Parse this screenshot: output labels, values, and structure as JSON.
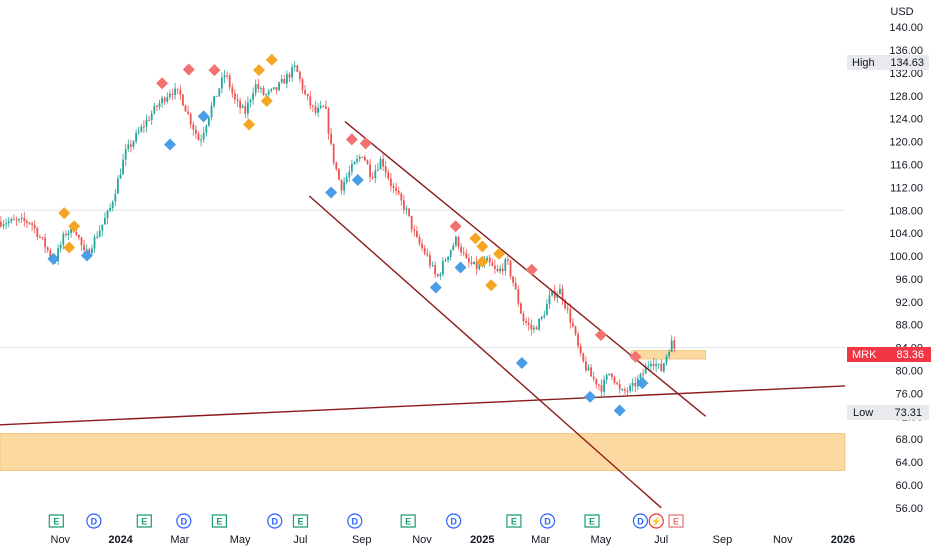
{
  "chart_data": {
    "type": "candlestick",
    "ticker": "MRK",
    "currency": "USD",
    "last_price": "83.36",
    "high_label": "High",
    "high_value": "134.63",
    "low_label": "Low",
    "low_value": "73.31",
    "y_ticks": [
      "140.00",
      "136.00",
      "132.00",
      "128.00",
      "124.00",
      "120.00",
      "116.00",
      "112.00",
      "108.00",
      "104.00",
      "100.00",
      "96.00",
      "92.00",
      "88.00",
      "84.00",
      "80.00",
      "76.00",
      "72.00",
      "68.00",
      "64.00",
      "60.00",
      "56.00"
    ],
    "x_ticks": [
      "Nov",
      "2024",
      "Mar",
      "May",
      "Jul",
      "Sep",
      "Nov",
      "2025",
      "Mar",
      "May",
      "Jul",
      "Sep",
      "Nov",
      "2026"
    ],
    "ylim": [
      53,
      143
    ],
    "price_path": [
      [
        "2023-10-01",
        106
      ],
      [
        "2023-10-15",
        102
      ],
      [
        "2023-10-25",
        99
      ],
      [
        "2023-11-05",
        104
      ],
      [
        "2023-11-15",
        105
      ],
      [
        "2023-11-25",
        100
      ],
      [
        "2023-12-05",
        103
      ],
      [
        "2023-12-20",
        108
      ],
      [
        "2024-01-05",
        118
      ],
      [
        "2024-01-20",
        122
      ],
      [
        "2024-02-05",
        126
      ],
      [
        "2024-02-20",
        129
      ],
      [
        "2024-03-01",
        128
      ],
      [
        "2024-03-10",
        124
      ],
      [
        "2024-03-20",
        120
      ],
      [
        "2024-04-01",
        126
      ],
      [
        "2024-04-15",
        132
      ],
      [
        "2024-04-25",
        127
      ],
      [
        "2024-05-05",
        125
      ],
      [
        "2024-05-15",
        130
      ],
      [
        "2024-05-25",
        128
      ],
      [
        "2024-06-05",
        129
      ],
      [
        "2024-06-15",
        131
      ],
      [
        "2024-06-25",
        133
      ],
      [
        "2024-07-05",
        128
      ],
      [
        "2024-07-15",
        125
      ],
      [
        "2024-07-25",
        126
      ],
      [
        "2024-08-01",
        118
      ],
      [
        "2024-08-10",
        112
      ],
      [
        "2024-08-20",
        115
      ],
      [
        "2024-09-01",
        118
      ],
      [
        "2024-09-10",
        114
      ],
      [
        "2024-09-20",
        117
      ],
      [
        "2024-10-01",
        112
      ],
      [
        "2024-10-15",
        108
      ],
      [
        "2024-10-25",
        103
      ],
      [
        "2024-11-05",
        100
      ],
      [
        "2024-11-15",
        96
      ],
      [
        "2024-11-25",
        100
      ],
      [
        "2024-12-05",
        103
      ],
      [
        "2024-12-15",
        99
      ],
      [
        "2024-12-25",
        98
      ],
      [
        "2025-01-05",
        99
      ],
      [
        "2025-01-15",
        97
      ],
      [
        "2025-01-25",
        99
      ],
      [
        "2025-02-01",
        95
      ],
      [
        "2025-02-10",
        89
      ],
      [
        "2025-02-20",
        87
      ],
      [
        "2025-03-01",
        89
      ],
      [
        "2025-03-10",
        93
      ],
      [
        "2025-03-20",
        94
      ],
      [
        "2025-04-01",
        88
      ],
      [
        "2025-04-10",
        82
      ],
      [
        "2025-04-20",
        79
      ],
      [
        "2025-05-01",
        77
      ],
      [
        "2025-05-10",
        80
      ],
      [
        "2025-05-20",
        76
      ],
      [
        "2025-06-01",
        77
      ],
      [
        "2025-06-10",
        79
      ],
      [
        "2025-06-20",
        82
      ],
      [
        "2025-06-30",
        80
      ],
      [
        "2025-07-10",
        85
      ],
      [
        "2025-07-15",
        83.36
      ]
    ],
    "horizontal_lines": [
      108,
      84
    ],
    "zones": [
      {
        "from": 62.5,
        "to": 69,
        "x_start": "2023-09-01",
        "x_end": "2026-04-01",
        "color": "#fdd9a2"
      },
      {
        "from": 82,
        "to": 83.5,
        "x_start": "2025-06-01",
        "x_end": "2025-08-15",
        "color": "#fdd9a2"
      }
    ],
    "trend_lines": [
      {
        "points": [
          [
            "2024-07-10",
            110.5
          ],
          [
            "2025-07-01",
            56
          ]
        ],
        "color": "#8b1a1a"
      },
      {
        "points": [
          [
            "2024-08-15",
            123.5
          ],
          [
            "2025-08-15",
            72
          ]
        ],
        "color": "#8b1a1a"
      },
      {
        "points": [
          [
            "2023-09-01",
            70.5
          ],
          [
            "2026-04-01",
            78
          ]
        ],
        "color": "#8b1a1a"
      }
    ],
    "pivot_markers": [
      {
        "x": "2023-10-25",
        "y": 99.5,
        "color": "#4a9ee6"
      },
      {
        "x": "2023-11-05",
        "y": 107.5,
        "color": "#f5a623"
      },
      {
        "x": "2023-11-10",
        "y": 101.5,
        "color": "#f5a623"
      },
      {
        "x": "2023-11-15",
        "y": 105.2,
        "color": "#f5a623"
      },
      {
        "x": "2023-11-28",
        "y": 100.1,
        "color": "#4a9ee6"
      },
      {
        "x": "2024-02-12",
        "y": 130.2,
        "color": "#f27171"
      },
      {
        "x": "2024-02-20",
        "y": 119.5,
        "color": "#4a9ee6"
      },
      {
        "x": "2024-03-10",
        "y": 132.6,
        "color": "#f27171"
      },
      {
        "x": "2024-03-25",
        "y": 124.4,
        "color": "#4a9ee6"
      },
      {
        "x": "2024-04-05",
        "y": 132.5,
        "color": "#f27171"
      },
      {
        "x": "2024-05-10",
        "y": 123,
        "color": "#f5a623"
      },
      {
        "x": "2024-05-20",
        "y": 132.5,
        "color": "#f5a623"
      },
      {
        "x": "2024-05-28",
        "y": 127.1,
        "color": "#f5a623"
      },
      {
        "x": "2024-06-02",
        "y": 134.3,
        "color": "#f5a623"
      },
      {
        "x": "2024-08-01",
        "y": 111.1,
        "color": "#4a9ee6"
      },
      {
        "x": "2024-08-22",
        "y": 120.4,
        "color": "#f27171"
      },
      {
        "x": "2024-08-28",
        "y": 113.3,
        "color": "#4a9ee6"
      },
      {
        "x": "2024-09-05",
        "y": 119.7,
        "color": "#f27171"
      },
      {
        "x": "2024-11-15",
        "y": 94.5,
        "color": "#4a9ee6"
      },
      {
        "x": "2024-12-05",
        "y": 105.2,
        "color": "#f27171"
      },
      {
        "x": "2024-12-10",
        "y": 98,
        "color": "#4a9ee6"
      },
      {
        "x": "2024-12-25",
        "y": 103.1,
        "color": "#f5a623"
      },
      {
        "x": "2025-01-01",
        "y": 101.7,
        "color": "#f5a623"
      },
      {
        "x": "2025-01-01",
        "y": 99,
        "color": "#f5a623"
      },
      {
        "x": "2025-01-10",
        "y": 94.9,
        "color": "#f5a623"
      },
      {
        "x": "2025-01-18",
        "y": 100.4,
        "color": "#f5a623"
      },
      {
        "x": "2025-02-20",
        "y": 97.6,
        "color": "#f27171"
      },
      {
        "x": "2025-02-10",
        "y": 81.3,
        "color": "#4a9ee6"
      },
      {
        "x": "2025-04-20",
        "y": 75.4,
        "color": "#4a9ee6"
      },
      {
        "x": "2025-05-01",
        "y": 86.2,
        "color": "#f27171"
      },
      {
        "x": "2025-05-20",
        "y": 73,
        "color": "#4a9ee6"
      },
      {
        "x": "2025-06-05",
        "y": 82.4,
        "color": "#f27171"
      },
      {
        "x": "2025-06-12",
        "y": 77.8,
        "color": "#4a9ee6"
      }
    ],
    "event_badges": [
      {
        "x": "2023-10-28",
        "label": "E",
        "color": "#1a9e6e"
      },
      {
        "x": "2023-12-05",
        "label": "D",
        "color": "#2962ff"
      },
      {
        "x": "2024-01-25",
        "label": "E",
        "color": "#1a9e6e"
      },
      {
        "x": "2024-03-05",
        "label": "D",
        "color": "#2962ff"
      },
      {
        "x": "2024-04-10",
        "label": "E",
        "color": "#1a9e6e"
      },
      {
        "x": "2024-06-05",
        "label": "D",
        "color": "#2962ff"
      },
      {
        "x": "2024-07-01",
        "label": "E",
        "color": "#1a9e6e"
      },
      {
        "x": "2024-08-25",
        "label": "D",
        "color": "#2962ff"
      },
      {
        "x": "2024-10-18",
        "label": "E",
        "color": "#1a9e6e"
      },
      {
        "x": "2024-12-03",
        "label": "D",
        "color": "#2962ff"
      },
      {
        "x": "2025-02-02",
        "label": "E",
        "color": "#1a9e6e"
      },
      {
        "x": "2025-03-08",
        "label": "D",
        "color": "#2962ff"
      },
      {
        "x": "2025-04-22",
        "label": "E",
        "color": "#1a9e6e"
      },
      {
        "x": "2025-06-10",
        "label": "D",
        "color": "#2962ff"
      },
      {
        "x": "2025-06-26",
        "label": "⚡",
        "color": "#e53935"
      },
      {
        "x": "2025-07-16",
        "label": "E",
        "color": "#e57373"
      }
    ],
    "colors": {
      "up": "#26a69a",
      "down": "#ef5350",
      "grid": "#e0e3eb",
      "axis_text": "#131722",
      "last_badge": "#f23645"
    }
  }
}
